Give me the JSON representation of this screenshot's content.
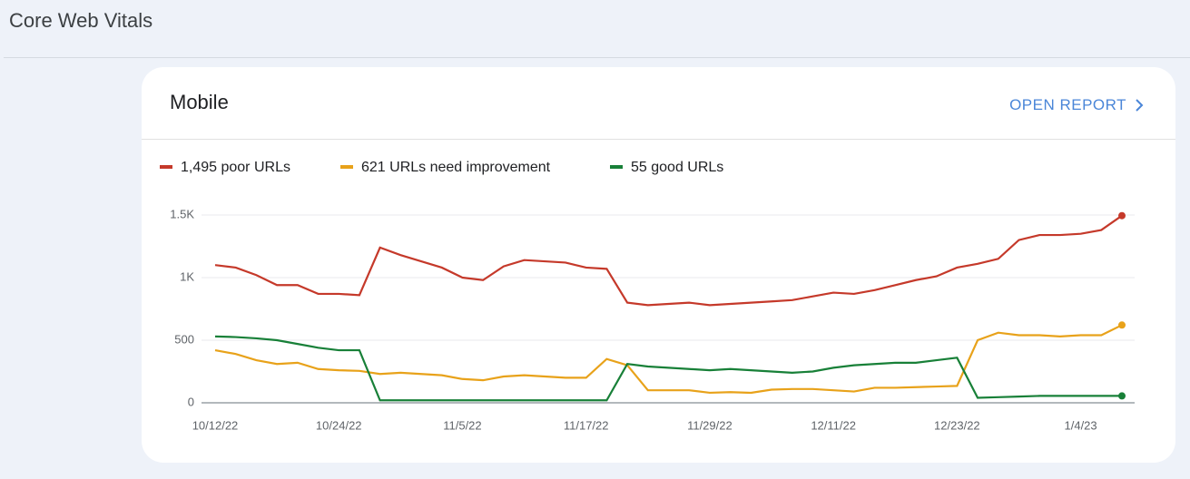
{
  "header": {
    "title": "Core Web Vitals"
  },
  "card": {
    "title": "Mobile",
    "link": "OPEN REPORT"
  },
  "chart_data": {
    "type": "line",
    "categories": [
      "10/12/22",
      null,
      null,
      null,
      null,
      null,
      "10/24/22",
      null,
      null,
      null,
      null,
      null,
      "11/5/22",
      null,
      null,
      null,
      null,
      null,
      "11/17/22",
      null,
      null,
      null,
      null,
      null,
      "11/29/22",
      null,
      null,
      null,
      null,
      null,
      "12/11/22",
      null,
      null,
      null,
      null,
      null,
      "12/23/22",
      null,
      null,
      null,
      null,
      null,
      "1/4/23",
      null,
      null
    ],
    "series": [
      {
        "name": "1,495 poor URLs",
        "color": "#c5392a",
        "values": [
          1100,
          1080,
          1020,
          940,
          940,
          870,
          870,
          860,
          1240,
          1180,
          1130,
          1080,
          1000,
          980,
          1090,
          1140,
          1130,
          1120,
          1080,
          1070,
          800,
          780,
          790,
          800,
          780,
          790,
          800,
          810,
          820,
          850,
          880,
          870,
          900,
          940,
          980,
          1010,
          1080,
          1110,
          1150,
          1300,
          1340,
          1340,
          1350,
          1380,
          1495
        ]
      },
      {
        "name": "621 URLs need improvement",
        "color": "#e8a21a",
        "values": [
          420,
          390,
          340,
          310,
          320,
          270,
          260,
          255,
          230,
          240,
          230,
          220,
          190,
          180,
          210,
          220,
          210,
          200,
          200,
          350,
          300,
          100,
          100,
          100,
          80,
          85,
          80,
          105,
          110,
          110,
          100,
          90,
          120,
          120,
          125,
          130,
          135,
          500,
          560,
          540,
          540,
          530,
          540,
          540,
          621
        ]
      },
      {
        "name": "55 good URLs",
        "color": "#188038",
        "values": [
          530,
          525,
          515,
          500,
          470,
          440,
          420,
          420,
          20,
          20,
          20,
          20,
          20,
          20,
          20,
          20,
          20,
          20,
          20,
          20,
          310,
          290,
          280,
          270,
          260,
          270,
          260,
          250,
          240,
          250,
          280,
          300,
          310,
          320,
          320,
          340,
          360,
          40,
          45,
          50,
          55,
          55,
          55,
          55,
          55
        ]
      }
    ],
    "ylim": [
      0,
      1500
    ],
    "yticks": [
      0,
      500,
      {
        "value": 1000,
        "label": "1K"
      },
      {
        "value": 1500,
        "label": "1.5K"
      }
    ],
    "grid": true
  }
}
